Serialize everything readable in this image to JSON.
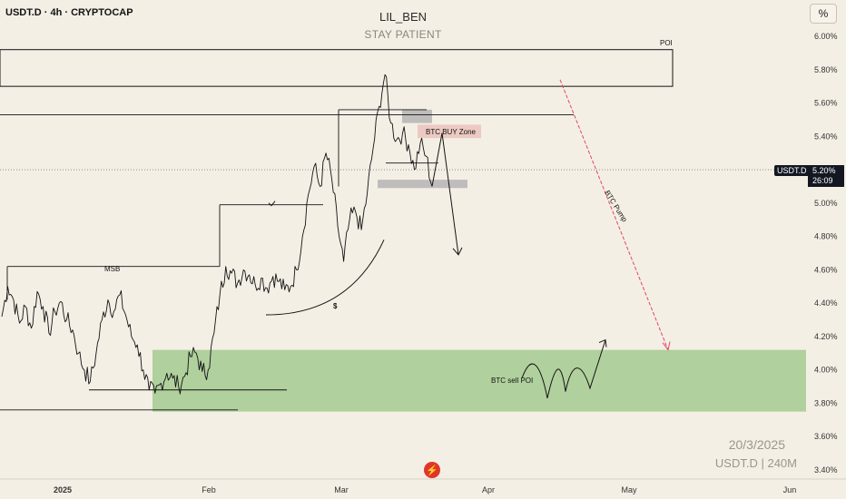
{
  "header": {
    "symbol": "USDT.D · 4h · CRYPTOCAP",
    "title": "LIL_BEN",
    "subtitle": "STAY PATIENT",
    "percent_toggle": "%"
  },
  "current": {
    "label": "USDT.D",
    "price": "5.20%",
    "countdown": "26:09"
  },
  "watermark": {
    "date": "20/3/2025",
    "symbol": "USDT.D | 240M"
  },
  "colors": {
    "background": "#f4efe5",
    "candles": "#131313",
    "green_zone": "#a9cc95",
    "gray_zone": "#b4b4b4",
    "red_zone": "#e8b9b4",
    "btc_pump_arrow": "#e0495e"
  },
  "annotations": {
    "poi": "POI",
    "btc_buy_zone": "BTC BUY Zone",
    "btc_pump": "BTC Pump",
    "msb": "MSB",
    "dollar": "$",
    "btc_sell_poi": "BTC sell POI"
  },
  "chart_data": {
    "type": "line",
    "title": "LIL_BEN",
    "subtitle": "STAY PATIENT",
    "y_unit": "%",
    "ylim": [
      3.4,
      6.1
    ],
    "y_ticks": [
      "6.00%",
      "5.80%",
      "5.60%",
      "5.40%",
      "5.20%",
      "5.00%",
      "4.80%",
      "4.60%",
      "4.40%",
      "4.20%",
      "4.00%",
      "3.80%",
      "3.60%",
      "3.40%"
    ],
    "x_ticks": [
      "2025",
      "Feb",
      "Mar",
      "Apr",
      "May",
      "Jun"
    ],
    "series": [
      {
        "values": [
          4.32,
          4.5,
          4.42,
          4.28,
          4.38,
          4.25,
          4.47,
          4.38,
          4.22,
          4.35,
          4.41,
          4.3,
          4.24,
          4.1,
          4.0,
          3.93,
          4.1,
          4.3,
          4.42,
          4.35,
          4.45,
          4.33,
          4.2,
          4.15,
          4.0,
          3.88,
          3.86,
          3.92,
          3.98,
          3.95,
          3.9,
          3.96,
          4.08,
          4.1,
          3.99,
          4.0,
          4.22,
          4.45,
          4.62,
          4.58,
          4.52,
          4.6,
          4.57,
          4.51,
          4.55,
          4.49,
          4.56,
          4.53,
          4.48,
          4.5,
          4.6,
          4.8,
          5.05,
          5.22,
          5.1,
          5.3,
          5.14,
          4.86,
          4.65,
          4.9,
          4.95,
          4.84,
          5.06,
          5.33,
          5.58,
          5.77,
          5.48,
          5.38,
          5.42,
          5.35,
          5.2,
          5.36,
          5.28,
          5.1
        ]
      }
    ]
  }
}
